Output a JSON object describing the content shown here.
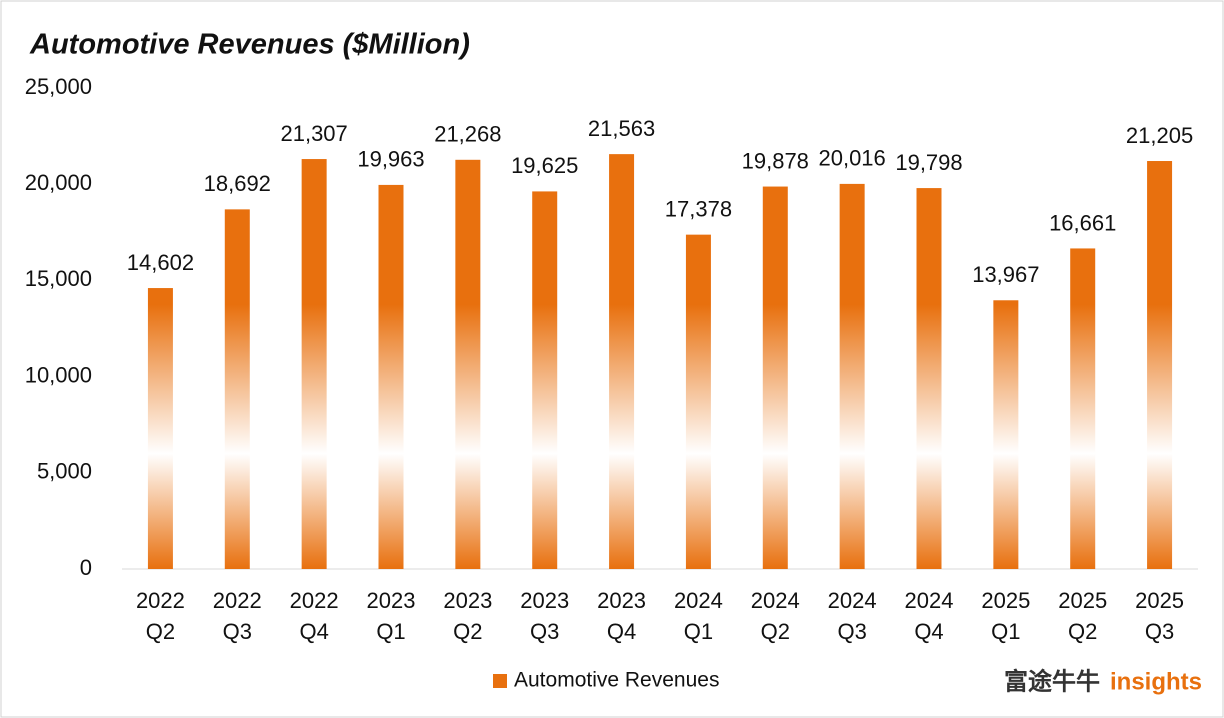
{
  "chart_data": {
    "type": "bar",
    "title": "Automotive Revenues ($Million)",
    "categories": [
      [
        "2022",
        "Q2"
      ],
      [
        "2022",
        "Q3"
      ],
      [
        "2022",
        "Q4"
      ],
      [
        "2023",
        "Q1"
      ],
      [
        "2023",
        "Q2"
      ],
      [
        "2023",
        "Q3"
      ],
      [
        "2023",
        "Q4"
      ],
      [
        "2024",
        "Q1"
      ],
      [
        "2024",
        "Q2"
      ],
      [
        "2024",
        "Q3"
      ],
      [
        "2024",
        "Q4"
      ],
      [
        "2025",
        "Q1"
      ],
      [
        "2025",
        "Q2"
      ],
      [
        "2025",
        "Q3"
      ]
    ],
    "series": [
      {
        "name": "Automotive Revenues",
        "color": "#e8700e",
        "values": [
          14602,
          18692,
          21307,
          19963,
          21268,
          19625,
          21563,
          17378,
          19878,
          20016,
          19798,
          13967,
          16661,
          21205
        ],
        "value_labels": [
          "14,602",
          "18,692",
          "21,307",
          "19,963",
          "21,268",
          "19,625",
          "21,563",
          "17,378",
          "19,878",
          "20,016",
          "19,798",
          "13,967",
          "16,661",
          "21,205"
        ]
      }
    ],
    "ylim": [
      0,
      25000
    ],
    "yticks": [
      0,
      {
        "value": 5000,
        "label": "5,000"
      },
      {
        "value": 10000,
        "label": "10,000"
      },
      {
        "value": 15000,
        "label": "15,000"
      },
      {
        "value": 20000,
        "label": "20,000"
      },
      {
        "value": 25000,
        "label": "25,000"
      }
    ],
    "grid": false,
    "legend": "bottom",
    "watermark": [
      "富途牛牛",
      "insights"
    ]
  }
}
